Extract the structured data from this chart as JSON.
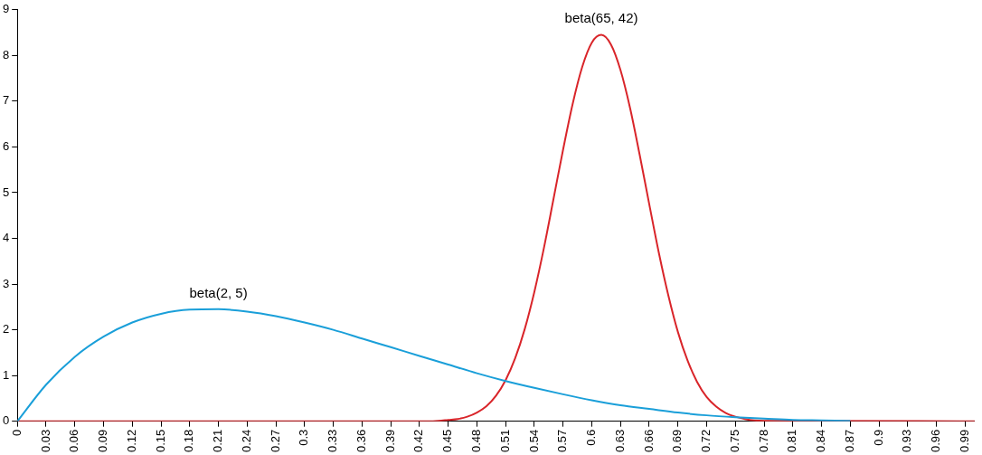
{
  "chart_data": {
    "type": "line",
    "xlim": [
      0,
      1
    ],
    "ylim": [
      0,
      9
    ],
    "xticks": [
      0,
      0.03,
      0.06,
      0.09,
      0.12,
      0.15,
      0.18,
      0.21,
      0.24,
      0.27,
      0.3,
      0.33,
      0.36,
      0.39,
      0.42,
      0.45,
      0.48,
      0.51,
      0.54,
      0.57,
      0.6,
      0.63,
      0.66,
      0.69,
      0.72,
      0.75,
      0.78,
      0.81,
      0.84,
      0.87,
      0.9,
      0.93,
      0.96,
      0.99
    ],
    "yticks": [
      0,
      1,
      2,
      3,
      4,
      5,
      6,
      7,
      8,
      9
    ],
    "grid": false,
    "legend": false,
    "marker": "none",
    "line_style": "solid",
    "series": [
      {
        "name": "beta(2, 5)",
        "color": "#1a9fd9",
        "x": [
          0,
          0.03,
          0.06,
          0.09,
          0.12,
          0.15,
          0.18,
          0.21,
          0.24,
          0.27,
          0.3,
          0.33,
          0.36,
          0.39,
          0.42,
          0.45,
          0.48,
          0.51,
          0.54,
          0.57,
          0.6,
          0.63,
          0.66,
          0.69,
          0.72,
          0.75,
          0.78,
          0.81,
          0.84,
          0.87
        ],
        "values": [
          0,
          0.8,
          1.41,
          1.85,
          2.16,
          2.35,
          2.44,
          2.45,
          2.4,
          2.3,
          2.16,
          2,
          1.81,
          1.62,
          1.43,
          1.24,
          1.05,
          0.88,
          0.73,
          0.59,
          0.46,
          0.35,
          0.27,
          0.19,
          0.13,
          0.09,
          0.06,
          0.03,
          0.02,
          0.01
        ]
      },
      {
        "name": "beta(65, 42)",
        "color": "#d9252a",
        "x": [
          0,
          0.43,
          0.44,
          0.45,
          0.46,
          0.47,
          0.48,
          0.49,
          0.5,
          0.51,
          0.52,
          0.53,
          0.54,
          0.55,
          0.56,
          0.57,
          0.58,
          0.59,
          0.6,
          0.61,
          0.62,
          0.63,
          0.64,
          0.65,
          0.66,
          0.67,
          0.68,
          0.69,
          0.7,
          0.71,
          0.72,
          0.73,
          0.74,
          0.75,
          0.76,
          0.77,
          0.78,
          1
        ],
        "values": [
          0,
          0,
          0.01,
          0.03,
          0.05,
          0.1,
          0.19,
          0.33,
          0.56,
          0.9,
          1.38,
          2.02,
          2.83,
          3.79,
          4.86,
          5.94,
          6.94,
          7.75,
          8.28,
          8.45,
          8.24,
          7.68,
          6.85,
          5.83,
          4.75,
          3.69,
          2.75,
          1.95,
          1.33,
          0.86,
          0.53,
          0.32,
          0.18,
          0.1,
          0.05,
          0.02,
          0.01,
          0
        ]
      }
    ]
  }
}
